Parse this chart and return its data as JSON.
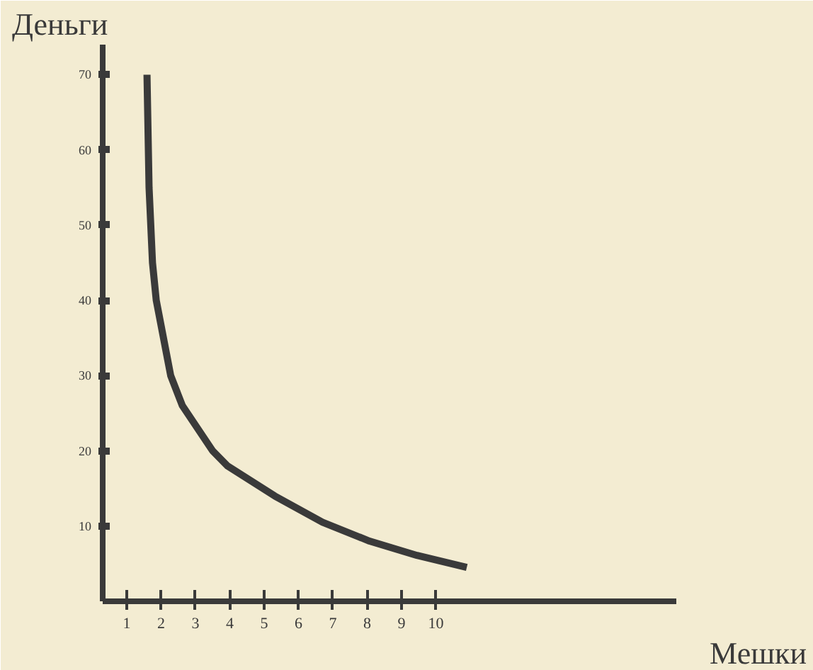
{
  "chart_data": {
    "type": "line",
    "xlabel": "Мешки",
    "ylabel": "Деньги",
    "x": [
      1.59,
      1.65,
      1.75,
      1.86,
      2.28,
      2.62,
      3.5,
      3.93,
      5.31,
      6.7,
      8.07,
      9.45,
      10.9
    ],
    "series": [
      {
        "color": "#3a3a3a",
        "values": [
          70,
          55,
          45,
          40,
          30,
          26,
          20,
          18,
          14,
          10.5,
          8,
          6.1,
          4.5
        ]
      }
    ],
    "xlim": [
      0.3,
      17
    ],
    "ylim": [
      0,
      74
    ],
    "xticks": [
      1,
      2,
      3,
      4,
      5,
      6,
      7,
      8,
      9,
      10
    ],
    "yticks": [
      10,
      20,
      30,
      40,
      50,
      60,
      70
    ],
    "grid": false,
    "marker": "none",
    "line_style": "solid"
  }
}
